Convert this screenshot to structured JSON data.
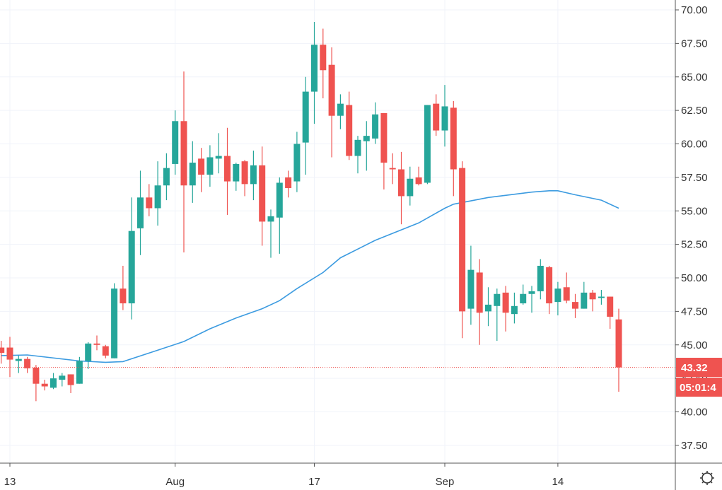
{
  "chart_data": {
    "type": "candlestick",
    "title": "",
    "xlabel": "",
    "ylabel": "",
    "ylim": [
      36.0,
      71.0
    ],
    "y_ticks": [
      "70.00",
      "67.50",
      "65.00",
      "62.50",
      "60.00",
      "57.50",
      "55.00",
      "52.50",
      "50.00",
      "47.50",
      "45.00",
      "42.50",
      "40.00",
      "37.50"
    ],
    "x_tick_labels": [
      {
        "date": "2020-07-13",
        "label": "13"
      },
      {
        "date": "2020-08-01",
        "label": "Aug"
      },
      {
        "date": "2020-08-17",
        "label": "17"
      },
      {
        "date": "2020-09-01",
        "label": "Sep"
      },
      {
        "date": "2020-09-14",
        "label": "14"
      }
    ],
    "grid": true,
    "colors": {
      "up": "#26a69a",
      "down": "#ef5350",
      "ma": "#3c9be0",
      "last_price": "#ef5350"
    },
    "last_price": {
      "value": "43.32",
      "countdown": "05:01:4"
    },
    "start_date": "2020-07-12",
    "candles": [
      [
        44.8,
        45.3,
        43.6,
        44.4
      ],
      [
        44.8,
        45.6,
        42.6,
        43.9
      ],
      [
        43.8,
        44.2,
        42.9,
        43.95
      ],
      [
        43.95,
        44.1,
        42.9,
        43.25
      ],
      [
        43.3,
        43.5,
        40.8,
        42.1
      ],
      [
        42.1,
        42.4,
        41.6,
        41.9
      ],
      [
        41.8,
        42.9,
        41.7,
        42.5
      ],
      [
        42.4,
        42.9,
        41.9,
        42.7
      ],
      [
        42.8,
        42.8,
        41.4,
        42.0
      ],
      [
        42.1,
        44.1,
        42.1,
        43.8
      ],
      [
        43.8,
        45.2,
        43.2,
        45.1
      ],
      [
        45.1,
        45.7,
        44.6,
        45.0
      ],
      [
        44.9,
        45.0,
        44.0,
        44.2
      ],
      [
        44.0,
        49.6,
        44.0,
        49.2
      ],
      [
        49.2,
        50.9,
        47.6,
        48.1
      ],
      [
        48.1,
        56.0,
        46.9,
        53.5
      ],
      [
        53.7,
        58.0,
        51.7,
        56.0
      ],
      [
        56.0,
        57.0,
        54.6,
        55.2
      ],
      [
        55.2,
        58.7,
        53.9,
        56.9
      ],
      [
        56.9,
        59.3,
        55.8,
        58.2
      ],
      [
        58.5,
        62.5,
        57.7,
        61.7
      ],
      [
        61.7,
        65.4,
        51.9,
        56.9
      ],
      [
        56.9,
        60.2,
        55.6,
        58.6
      ],
      [
        58.9,
        59.7,
        56.4,
        57.7
      ],
      [
        57.7,
        59.9,
        56.8,
        59.0
      ],
      [
        58.9,
        60.8,
        57.8,
        59.1
      ],
      [
        59.1,
        61.2,
        54.7,
        57.2
      ],
      [
        57.2,
        58.6,
        56.5,
        58.5
      ],
      [
        58.7,
        58.8,
        56.1,
        57.0
      ],
      [
        57.0,
        59.5,
        55.8,
        58.4
      ],
      [
        58.4,
        59.8,
        52.4,
        54.2
      ],
      [
        54.2,
        55.1,
        51.5,
        54.6
      ],
      [
        54.5,
        57.5,
        51.8,
        57.1
      ],
      [
        57.5,
        58.0,
        56.0,
        56.7
      ],
      [
        57.2,
        60.9,
        56.4,
        60.0
      ],
      [
        60.1,
        65.0,
        57.7,
        63.9
      ],
      [
        63.9,
        69.1,
        61.5,
        67.4
      ],
      [
        67.4,
        68.6,
        63.4,
        65.5
      ],
      [
        65.9,
        67.2,
        59.0,
        62.1
      ],
      [
        62.1,
        63.7,
        61.1,
        63.0
      ],
      [
        62.9,
        63.9,
        58.8,
        59.1
      ],
      [
        59.1,
        60.6,
        57.8,
        60.3
      ],
      [
        60.2,
        61.7,
        58.0,
        60.6
      ],
      [
        60.4,
        63.1,
        60.0,
        62.2
      ],
      [
        62.3,
        62.3,
        56.6,
        58.6
      ],
      [
        58.2,
        59.3,
        57.0,
        58.1
      ],
      [
        58.1,
        59.4,
        54.0,
        56.1
      ],
      [
        56.1,
        58.3,
        55.4,
        57.4
      ],
      [
        57.5,
        58.3,
        56.9,
        57.0
      ],
      [
        57.1,
        62.9,
        57.0,
        62.9
      ],
      [
        63.0,
        63.7,
        60.6,
        61.0
      ],
      [
        61.0,
        64.4,
        59.8,
        62.8
      ],
      [
        62.7,
        63.2,
        56.1,
        58.1
      ],
      [
        58.2,
        58.7,
        45.5,
        47.5
      ],
      [
        47.7,
        52.4,
        46.5,
        50.6
      ],
      [
        50.4,
        51.4,
        45.0,
        47.4
      ],
      [
        47.5,
        49.3,
        46.4,
        48.0
      ],
      [
        47.9,
        49.2,
        45.3,
        48.8
      ],
      [
        48.9,
        49.4,
        46.0,
        47.4
      ],
      [
        47.3,
        48.9,
        46.6,
        47.9
      ],
      [
        48.1,
        49.5,
        48.0,
        48.8
      ],
      [
        48.8,
        49.4,
        47.4,
        49.0
      ],
      [
        49.0,
        51.4,
        48.4,
        50.9
      ],
      [
        50.8,
        50.9,
        47.3,
        48.1
      ],
      [
        48.2,
        49.7,
        47.2,
        49.2
      ],
      [
        49.3,
        50.4,
        48.1,
        48.3
      ],
      [
        48.2,
        48.8,
        47.0,
        47.7
      ],
      [
        47.7,
        49.7,
        47.7,
        48.9
      ],
      [
        48.9,
        49.1,
        47.5,
        48.4
      ],
      [
        48.5,
        49.1,
        48.0,
        48.6
      ],
      [
        48.6,
        48.6,
        46.2,
        47.1
      ],
      [
        46.9,
        47.7,
        41.5,
        43.32
      ]
    ],
    "moving_average": [
      [
        "2020-07-12",
        44.2
      ],
      [
        "2020-07-15",
        44.25
      ],
      [
        "2020-07-21",
        43.8
      ],
      [
        "2020-07-24",
        43.7
      ],
      [
        "2020-07-26",
        43.75
      ],
      [
        "2020-07-30",
        44.6
      ],
      [
        "2020-08-02",
        45.25
      ],
      [
        "2020-08-05",
        46.2
      ],
      [
        "2020-08-08",
        47.0
      ],
      [
        "2020-08-11",
        47.7
      ],
      [
        "2020-08-13",
        48.3
      ],
      [
        "2020-08-15",
        49.2
      ],
      [
        "2020-08-18",
        50.4
      ],
      [
        "2020-08-20",
        51.5
      ],
      [
        "2020-08-24",
        52.8
      ],
      [
        "2020-08-29",
        54.1
      ],
      [
        "2020-09-01",
        55.2
      ],
      [
        "2020-09-02",
        55.5
      ],
      [
        "2020-09-06",
        56.0
      ],
      [
        "2020-09-11",
        56.4
      ],
      [
        "2020-09-13",
        56.5
      ],
      [
        "2020-09-14",
        56.5
      ],
      [
        "2020-09-16",
        56.2
      ],
      [
        "2020-09-19",
        55.8
      ],
      [
        "2020-09-21",
        55.2
      ]
    ]
  },
  "toolbar": {
    "settings_icon": "gear-icon"
  }
}
